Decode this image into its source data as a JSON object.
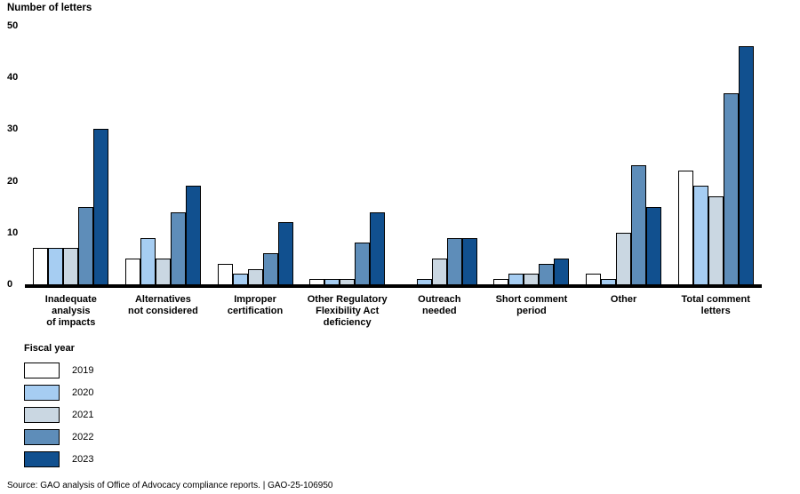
{
  "chart_data": {
    "type": "bar",
    "title": "Number of letters",
    "ylabel": "Number of letters",
    "ylim": [
      0,
      50
    ],
    "yticks": [
      0,
      10,
      20,
      30,
      40,
      50
    ],
    "grid": false,
    "legend_position": "bottom-left",
    "legend_title": "Fiscal year",
    "categories": [
      "Inadequate\nanalysis\nof impacts",
      "Alternatives\nnot considered",
      "Improper\ncertification",
      "Other Regulatory\nFlexibility Act\ndeficiency",
      "Outreach\nneeded",
      "Short comment\nperiod",
      "Other",
      "Total comment\nletters"
    ],
    "series": [
      {
        "name": "2019",
        "color": "#ffffff",
        "values": [
          7,
          5,
          4,
          1,
          0,
          1,
          2,
          22
        ]
      },
      {
        "name": "2020",
        "color": "#a6cdf2",
        "values": [
          7,
          9,
          2,
          1,
          1,
          2,
          1,
          19
        ]
      },
      {
        "name": "2021",
        "color": "#cad7e2",
        "values": [
          7,
          5,
          3,
          1,
          5,
          2,
          10,
          17
        ]
      },
      {
        "name": "2022",
        "color": "#5e8db9",
        "values": [
          15,
          14,
          6,
          8,
          9,
          4,
          23,
          37
        ]
      },
      {
        "name": "2023",
        "color": "#11508f",
        "values": [
          30,
          19,
          12,
          14,
          9,
          5,
          15,
          46
        ]
      }
    ],
    "axis_color": "#000000",
    "source": "Source: GAO analysis of Office of Advocacy compliance reports.  |  GAO-25-106950"
  }
}
